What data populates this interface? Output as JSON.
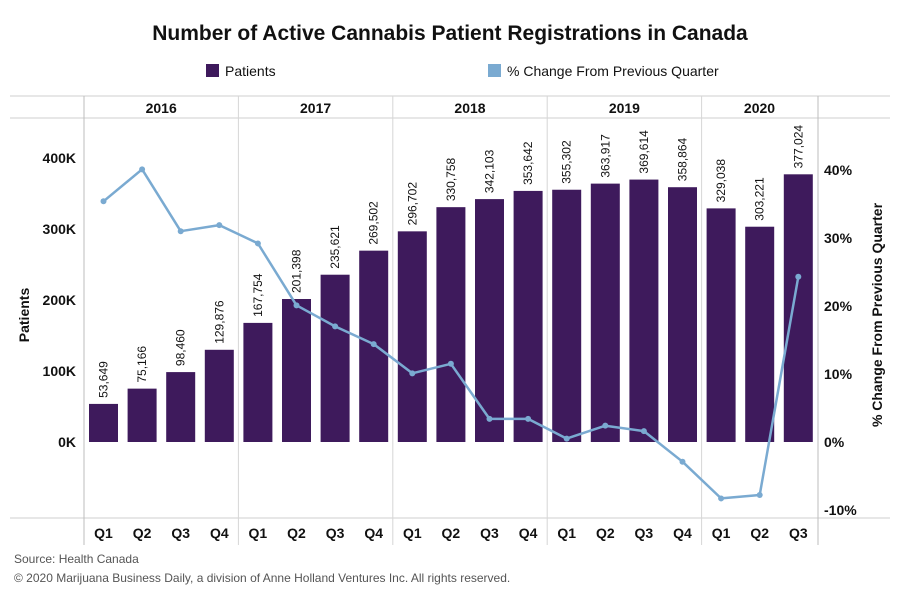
{
  "chart_data": {
    "type": "bar",
    "title": "Number of Active Cannabis Patient Registrations in Canada",
    "legend": [
      "Patients",
      "% Change From Previous Quarter"
    ],
    "ylabel": "Patients",
    "y2label": "% Change From Previous Quarter",
    "ylim": [
      0,
      400000
    ],
    "y2lim": [
      -10,
      40
    ],
    "y_ticks": [
      "0K",
      "100K",
      "200K",
      "300K",
      "400K"
    ],
    "y2_ticks": [
      "-10%",
      "0%",
      "10%",
      "20%",
      "30%",
      "40%"
    ],
    "years": [
      "2016",
      "2017",
      "2018",
      "2019",
      "2020"
    ],
    "quarters_per_year": [
      4,
      4,
      4,
      4,
      3
    ],
    "categories": [
      "Q1",
      "Q2",
      "Q3",
      "Q4",
      "Q1",
      "Q2",
      "Q3",
      "Q4",
      "Q1",
      "Q2",
      "Q3",
      "Q4",
      "Q1",
      "Q2",
      "Q3",
      "Q4",
      "Q1",
      "Q2",
      "Q3"
    ],
    "series": [
      {
        "name": "Patients",
        "type": "bar",
        "values": [
          53649,
          75166,
          98460,
          129876,
          167754,
          201398,
          235621,
          269502,
          296702,
          330758,
          342103,
          353642,
          355302,
          363917,
          369614,
          358864,
          329038,
          303221,
          377024
        ],
        "labels": [
          "53,649",
          "75,166",
          "98,460",
          "129,876",
          "167,754",
          "201,398",
          "235,621",
          "269,502",
          "296,702",
          "330,758",
          "342,103",
          "353,642",
          "355,302",
          "363,917",
          "369,614",
          "358,864",
          "329,038",
          "303,221",
          "377,024"
        ]
      },
      {
        "name": "% Change From Previous Quarter",
        "type": "line",
        "values": [
          35.4,
          40.1,
          31.0,
          31.9,
          29.2,
          20.1,
          17.0,
          14.4,
          10.1,
          11.5,
          3.4,
          3.4,
          0.5,
          2.4,
          1.6,
          -2.9,
          -8.3,
          -7.8,
          24.3
        ]
      }
    ],
    "colors": {
      "bar": "#3e1a5c",
      "line": "#7aaad1"
    },
    "grid": "vertical-year-dividers"
  },
  "footer": {
    "source": "Source: Health Canada",
    "copyright": "© 2020 Marijuana Business Daily, a division of Anne Holland Ventures Inc. All rights reserved."
  }
}
